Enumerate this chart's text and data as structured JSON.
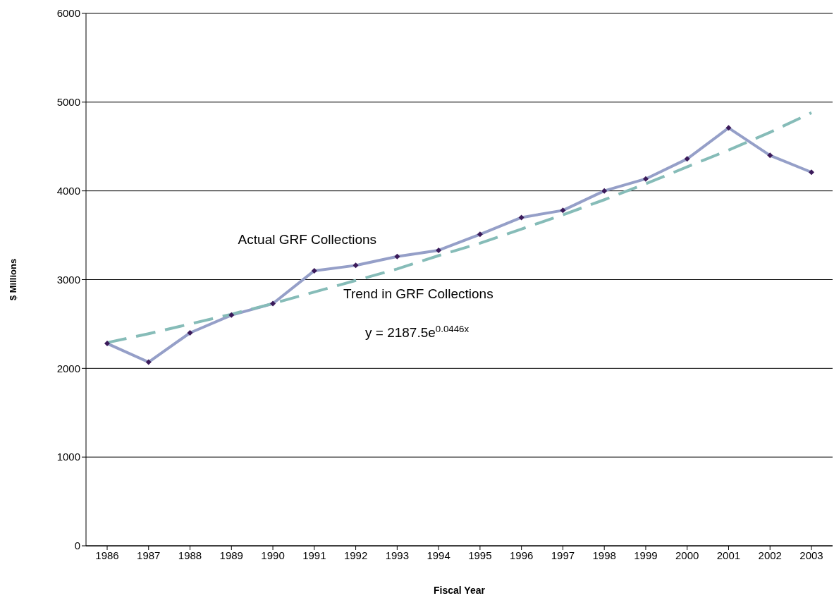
{
  "chart_data": {
    "type": "line",
    "xlabel": "Fiscal Year",
    "ylabel": "$ Millions",
    "categories": [
      "1986",
      "1987",
      "1988",
      "1989",
      "1990",
      "1991",
      "1992",
      "1993",
      "1994",
      "1995",
      "1996",
      "1997",
      "1998",
      "1999",
      "2000",
      "2001",
      "2002",
      "2003"
    ],
    "series": [
      {
        "name": "Actual GRF Collections",
        "color": "#959fc8",
        "marker": "diamond",
        "line_style": "solid",
        "values": [
          2280,
          2070,
          2400,
          2600,
          2730,
          3100,
          3160,
          3260,
          3330,
          3510,
          3700,
          3780,
          4000,
          4135,
          4360,
          4710,
          4400,
          4210
        ]
      },
      {
        "name": "Trend in GRF Collections",
        "color": "#86bcb8",
        "marker": "none",
        "line_style": "dashed",
        "values": [
          2290,
          2390,
          2500,
          2610,
          2730,
          2860,
          2990,
          3120,
          3270,
          3410,
          3570,
          3730,
          3900,
          4080,
          4270,
          4460,
          4660,
          4880
        ]
      }
    ],
    "annotations": [
      "y = 2187.5e$^{0.0446x}$"
    ],
    "ylim": [
      0,
      6000
    ],
    "yticks": [
      0,
      1000,
      2000,
      3000,
      4000,
      5000,
      6000
    ],
    "grid": "y",
    "legend": false
  }
}
